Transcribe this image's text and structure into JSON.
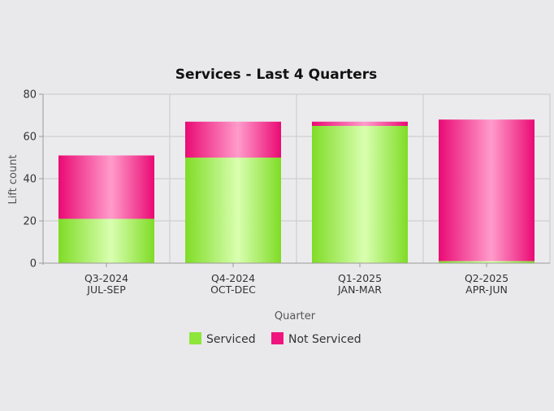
{
  "chart_data": {
    "type": "bar",
    "stacked": true,
    "title": "Services - Last 4 Quarters",
    "xlabel": "Quarter",
    "ylabel": "Lift count",
    "ylim": [
      0,
      80
    ],
    "yticks": [
      0,
      20,
      40,
      60,
      80
    ],
    "grid": true,
    "legend_position": "bottom",
    "categories": [
      [
        "Q3-2024",
        "JUL-SEP"
      ],
      [
        "Q4-2024",
        "OCT-DEC"
      ],
      [
        "Q1-2025",
        "JAN-MAR"
      ],
      [
        "Q2-2025",
        "APR-JUN"
      ]
    ],
    "series": [
      {
        "name": "Serviced",
        "color": "#8ee63a",
        "values": [
          21,
          50,
          65,
          1
        ]
      },
      {
        "name": "Not Serviced",
        "color": "#f0147e",
        "values": [
          30,
          17,
          2,
          67
        ]
      }
    ]
  }
}
